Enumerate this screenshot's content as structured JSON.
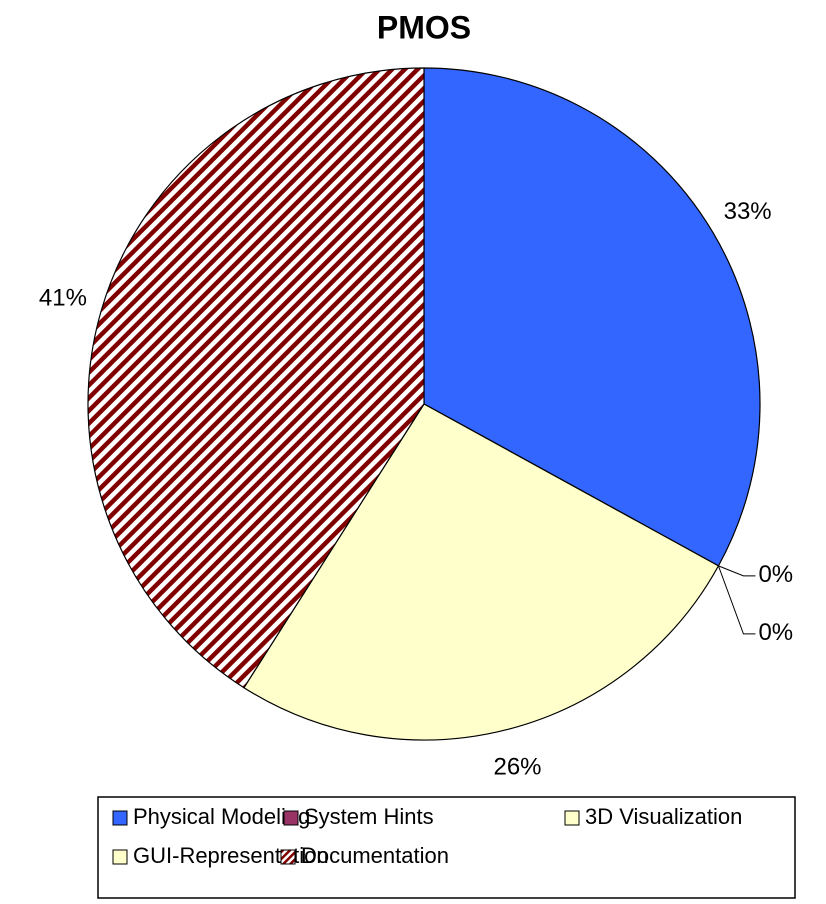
{
  "chart_data": {
    "type": "pie",
    "title": "PMOS",
    "categories": [
      "Physical Modeling",
      "System Hints",
      "3D Visualization",
      "GUI-Representation",
      "Documentation"
    ],
    "values": [
      33,
      0,
      0,
      26,
      41
    ],
    "value_labels": [
      "33%",
      "0%",
      "0%",
      "26%",
      "41%"
    ],
    "colors": [
      "#3366ff",
      "#993366",
      "#ffffcc",
      "#ffffcc",
      "#800000"
    ],
    "hatched": [
      false,
      false,
      false,
      false,
      true
    ],
    "legend": "bottom"
  }
}
